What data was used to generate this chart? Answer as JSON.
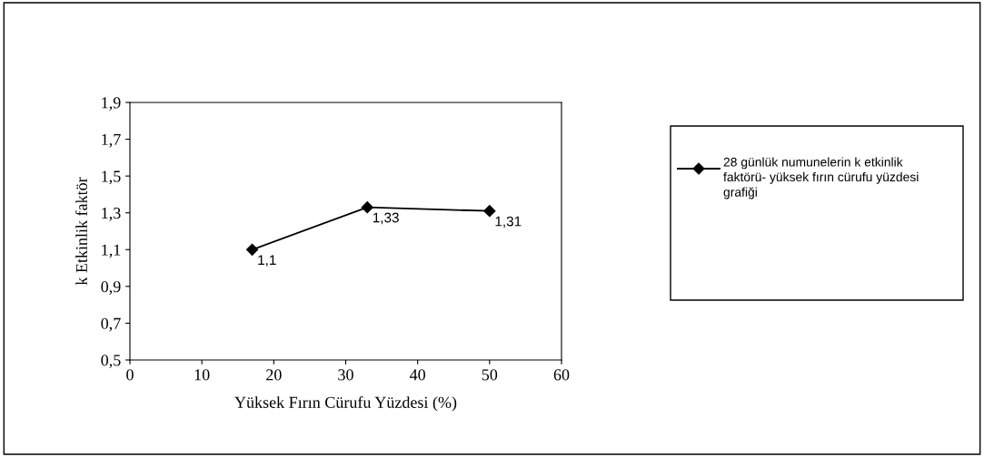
{
  "chart_data": {
    "type": "line",
    "xlabel": "Yüksek Fırın Cürufu Yüzdesi (%)",
    "ylabel": "k Etkinlik faktör",
    "x": [
      17,
      33,
      50
    ],
    "series": [
      {
        "name": "28 günlük numunelerin k etkinlik faktörü- yüksek fırın cürufu yüzdesi grafiği",
        "color": "#000000",
        "values": [
          1.1,
          1.33,
          1.31
        ],
        "value_labels": [
          "1,1",
          "1,33",
          "1,31"
        ]
      }
    ],
    "xlim": [
      0,
      60
    ],
    "xticks": [
      0,
      10,
      20,
      30,
      40,
      50,
      60
    ],
    "ylim": [
      0.5,
      1.9
    ],
    "yticks": [
      {
        "value": 0.5,
        "label": "0,5"
      },
      {
        "value": 0.7,
        "label": "0,7"
      },
      {
        "value": 0.9,
        "label": "0,9"
      },
      {
        "value": 1.1,
        "label": "1,1"
      },
      {
        "value": 1.3,
        "label": "1,3"
      },
      {
        "value": 1.5,
        "label": "1,5"
      },
      {
        "value": 1.7,
        "label": "1,7"
      },
      {
        "value": 1.9,
        "label": "1,9"
      }
    ],
    "marker": "diamond",
    "line_style": "solid",
    "grid": false,
    "legend": "right"
  }
}
